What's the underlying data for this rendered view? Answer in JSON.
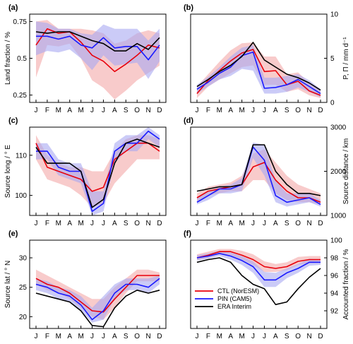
{
  "months": [
    "J",
    "F",
    "M",
    "A",
    "M",
    "J",
    "J",
    "A",
    "S",
    "O",
    "N",
    "D"
  ],
  "colors": {
    "CTL": "#e8000b",
    "CTL_band": "#f4a9a9",
    "PIN": "#1a1aff",
    "PIN_band": "#a8a8f2",
    "ERA": "#000000"
  },
  "legend": {
    "entries": [
      {
        "key": "CTL",
        "label": "CTL (NorESM)"
      },
      {
        "key": "PIN",
        "label": "PIN (CAM5)"
      },
      {
        "key": "ERA",
        "label": "ERA Interim"
      }
    ]
  },
  "chart_data": [
    {
      "id": "a",
      "type": "line",
      "panel_label": "(a)",
      "ylabel": "Land fraction / %",
      "ylabel_side": "left",
      "yticks": [
        0.25,
        0.5,
        0.75
      ],
      "ylim": [
        0.2,
        0.8
      ],
      "series": [
        {
          "key": "CTL",
          "values": [
            0.59,
            0.7,
            0.67,
            0.68,
            0.61,
            0.52,
            0.48,
            0.41,
            0.46,
            0.52,
            0.59,
            0.57
          ],
          "lower": [
            0.37,
            0.59,
            0.58,
            0.6,
            0.5,
            0.35,
            0.3,
            0.22,
            0.28,
            0.35,
            0.4,
            0.45
          ],
          "upper": [
            0.75,
            0.76,
            0.7,
            0.7,
            0.7,
            0.69,
            0.67,
            0.6,
            0.62,
            0.67,
            0.69,
            0.67
          ]
        },
        {
          "key": "PIN",
          "values": [
            0.65,
            0.65,
            0.63,
            0.65,
            0.59,
            0.57,
            0.64,
            0.57,
            0.58,
            0.58,
            0.49,
            0.59
          ],
          "lower": [
            0.52,
            0.55,
            0.54,
            0.56,
            0.5,
            0.42,
            0.52,
            0.45,
            0.46,
            0.47,
            0.36,
            0.48
          ],
          "upper": [
            0.75,
            0.74,
            0.7,
            0.7,
            0.67,
            0.66,
            0.73,
            0.7,
            0.7,
            0.7,
            0.62,
            0.7
          ]
        },
        {
          "key": "ERA",
          "values": [
            0.68,
            0.67,
            0.68,
            0.68,
            0.65,
            0.62,
            0.6,
            0.55,
            0.55,
            0.6,
            0.56,
            0.64
          ]
        }
      ]
    },
    {
      "id": "b",
      "type": "line",
      "panel_label": "(b)",
      "ylabel": "P, Π / mm d⁻¹",
      "ylabel_side": "right",
      "yticks": [
        0,
        5,
        10
      ],
      "ylim": [
        0,
        10
      ],
      "series": [
        {
          "key": "CTL",
          "values": [
            1.0,
            2.5,
            3.6,
            4.7,
            5.6,
            6.0,
            3.5,
            3.6,
            2.0,
            2.4,
            1.3,
            0.8
          ],
          "lower": [
            0.5,
            1.8,
            2.6,
            3.3,
            4.0,
            4.2,
            2.0,
            2.0,
            1.2,
            1.5,
            0.8,
            0.5
          ],
          "upper": [
            1.8,
            3.2,
            4.6,
            5.9,
            6.7,
            6.8,
            5.2,
            5.2,
            3.2,
            3.4,
            2.2,
            1.4
          ]
        },
        {
          "key": "PIN",
          "values": [
            1.5,
            2.3,
            3.3,
            4.0,
            5.3,
            5.7,
            1.6,
            1.7,
            2.0,
            2.6,
            1.8,
            1.0
          ],
          "lower": [
            1.0,
            1.8,
            2.6,
            3.0,
            3.8,
            3.6,
            1.0,
            1.0,
            1.2,
            1.7,
            1.2,
            0.6
          ],
          "upper": [
            2.0,
            2.9,
            4.0,
            5.2,
            6.2,
            6.5,
            2.8,
            2.8,
            3.0,
            3.2,
            2.5,
            1.5
          ]
        },
        {
          "key": "ERA",
          "values": [
            1.8,
            2.6,
            3.5,
            4.2,
            5.2,
            6.8,
            4.8,
            4.0,
            3.2,
            2.8,
            2.2,
            1.4
          ]
        }
      ]
    },
    {
      "id": "c",
      "type": "line",
      "panel_label": "(c)",
      "ylabel": "Source long / ° E",
      "ylabel_side": "left",
      "yticks": [
        100,
        110
      ],
      "ylim": [
        95,
        117
      ],
      "series": [
        {
          "key": "CTL",
          "values": [
            113,
            107,
            106,
            105,
            104,
            101,
            102,
            109,
            111,
            113,
            113,
            111
          ],
          "lower": [
            109,
            104,
            103,
            102,
            100,
            97,
            98,
            103,
            106,
            109,
            109,
            109
          ],
          "upper": [
            115,
            110,
            108,
            107,
            107,
            106,
            106,
            111,
            114,
            115,
            115,
            114
          ]
        },
        {
          "key": "PIN",
          "values": [
            111,
            111,
            107,
            106,
            106,
            96,
            98,
            111,
            113,
            113,
            116,
            114
          ],
          "lower": [
            109,
            109,
            105,
            104,
            103,
            95,
            96,
            108,
            111,
            111,
            114,
            112
          ],
          "upper": [
            113,
            113,
            109,
            108,
            108,
            101,
            101,
            113,
            115,
            115,
            117,
            115
          ]
        },
        {
          "key": "ERA",
          "values": [
            112,
            108,
            108,
            108,
            106,
            97,
            99,
            108,
            113,
            114,
            113,
            112
          ]
        }
      ]
    },
    {
      "id": "d",
      "type": "line",
      "panel_label": "(d)",
      "ylabel": "Source distance / km",
      "ylabel_side": "right",
      "yticks": [
        1000,
        2000,
        3000
      ],
      "ylim": [
        1000,
        3000
      ],
      "series": [
        {
          "key": "CTL",
          "values": [
            1400,
            1550,
            1600,
            1650,
            1700,
            2100,
            2200,
            1800,
            1550,
            1400,
            1400,
            1300
          ],
          "lower": [
            1300,
            1450,
            1500,
            1550,
            1550,
            1800,
            1800,
            1500,
            1350,
            1300,
            1300,
            1250
          ],
          "upper": [
            1500,
            1650,
            1700,
            1750,
            1900,
            2400,
            2500,
            2200,
            1900,
            1700,
            1600,
            1500
          ]
        },
        {
          "key": "PIN",
          "values": [
            1300,
            1450,
            1600,
            1600,
            1700,
            2550,
            2250,
            1450,
            1300,
            1350,
            1400,
            1250
          ],
          "lower": [
            1250,
            1350,
            1500,
            1500,
            1550,
            2300,
            1900,
            1300,
            1200,
            1250,
            1300,
            1200
          ],
          "upper": [
            1400,
            1550,
            1650,
            1700,
            1850,
            2650,
            2600,
            1800,
            1500,
            1500,
            1500,
            1350
          ]
        },
        {
          "key": "ERA",
          "values": [
            1550,
            1600,
            1650,
            1650,
            1700,
            2600,
            2600,
            2000,
            1700,
            1500,
            1500,
            1450
          ]
        }
      ]
    },
    {
      "id": "e",
      "type": "line",
      "panel_label": "(e)",
      "ylabel": "Source lat / ° N",
      "ylabel_side": "left",
      "yticks": [
        20,
        25,
        30
      ],
      "ylim": [
        18,
        33
      ],
      "series": [
        {
          "key": "CTL",
          "values": [
            26.5,
            25.5,
            25.0,
            24.0,
            22.5,
            21.0,
            20.8,
            23.0,
            25.0,
            27.0,
            27.0,
            27.0
          ],
          "lower": [
            25.5,
            24.5,
            24.0,
            23.0,
            21.5,
            20.0,
            19.5,
            21.5,
            24.0,
            26.0,
            26.0,
            26.0
          ],
          "upper": [
            28.0,
            27.0,
            26.0,
            25.0,
            24.0,
            23.0,
            23.0,
            25.0,
            26.5,
            28.0,
            28.0,
            27.5
          ]
        },
        {
          "key": "PIN",
          "values": [
            25.5,
            25.0,
            24.0,
            23.5,
            22.0,
            19.5,
            21.0,
            24.0,
            25.5,
            25.5,
            25.0,
            26.5
          ],
          "lower": [
            24.5,
            24.0,
            23.0,
            22.5,
            21.0,
            19.0,
            19.5,
            23.0,
            24.5,
            24.5,
            24.0,
            25.5
          ],
          "upper": [
            26.5,
            26.0,
            25.0,
            24.5,
            23.5,
            21.5,
            23.5,
            25.5,
            26.5,
            26.5,
            26.5,
            27.0
          ]
        },
        {
          "key": "ERA",
          "values": [
            24.0,
            23.5,
            23.0,
            22.5,
            21.0,
            18.5,
            18.3,
            21.5,
            23.5,
            24.5,
            24.0,
            24.5
          ]
        }
      ]
    },
    {
      "id": "f",
      "type": "line",
      "panel_label": "(f)",
      "ylabel": "Accounted fraction / %",
      "ylabel_side": "right",
      "yticks": [
        92,
        94,
        96,
        98,
        100
      ],
      "ylim": [
        90,
        100
      ],
      "series": [
        {
          "key": "CTL",
          "values": [
            98.0,
            98.3,
            98.7,
            98.7,
            98.3,
            97.8,
            97.0,
            96.8,
            97.0,
            97.6,
            97.8,
            97.8
          ],
          "lower": [
            97.7,
            98.0,
            98.4,
            98.3,
            97.8,
            97.2,
            96.4,
            96.4,
            96.6,
            97.2,
            97.4,
            97.4
          ],
          "upper": [
            98.4,
            98.7,
            99.0,
            99.0,
            98.8,
            98.4,
            97.6,
            97.3,
            97.5,
            98.1,
            98.2,
            98.2
          ]
        },
        {
          "key": "PIN",
          "values": [
            98.0,
            98.2,
            98.5,
            98.2,
            97.7,
            97.0,
            95.5,
            95.5,
            96.3,
            96.8,
            97.5,
            97.5
          ],
          "lower": [
            97.7,
            97.9,
            98.2,
            97.8,
            97.2,
            96.3,
            94.7,
            94.7,
            95.7,
            96.3,
            97.1,
            97.2
          ],
          "upper": [
            98.3,
            98.5,
            98.8,
            98.6,
            98.2,
            97.6,
            96.4,
            96.3,
            96.8,
            97.3,
            97.9,
            97.8
          ]
        },
        {
          "key": "ERA",
          "values": [
            97.5,
            97.8,
            98.0,
            97.5,
            96.0,
            95.0,
            94.5,
            92.7,
            93.0,
            94.5,
            95.8,
            96.8
          ]
        }
      ]
    }
  ]
}
